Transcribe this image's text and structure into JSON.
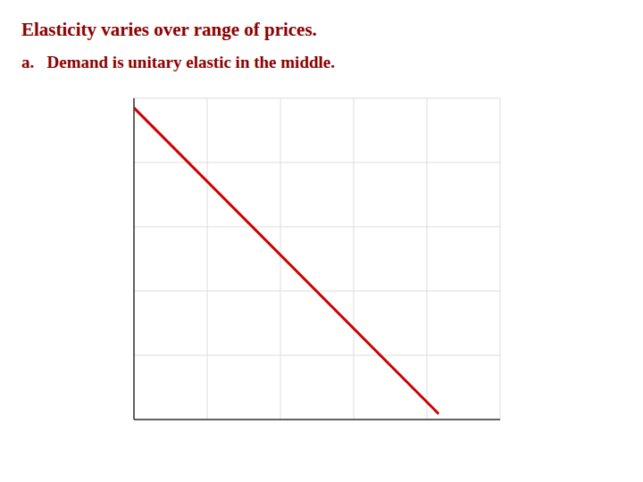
{
  "chart_data": {
    "type": "line",
    "title": "Elasticity varies over range of prices.",
    "subtitle": "a.   Demand is unitary elastic in the middle.",
    "x": [
      0.0,
      0.83
    ],
    "values": [
      0.97,
      0.02
    ],
    "color": "#CC0000",
    "xlim": [
      0,
      1
    ],
    "ylim": [
      0,
      1
    ],
    "xticks": [
      0.0,
      0.2,
      0.4,
      0.6,
      0.8,
      1.0
    ],
    "yticks": [
      0.0,
      0.2,
      0.4,
      0.6,
      0.8,
      1.0
    ],
    "grid": true,
    "tick_labels": false
  }
}
